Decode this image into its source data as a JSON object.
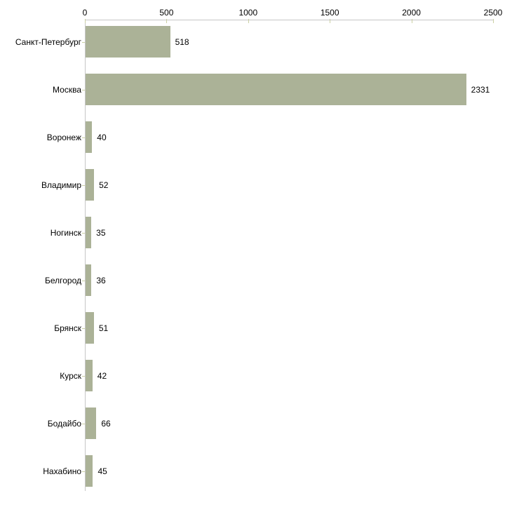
{
  "chart_data": {
    "type": "bar",
    "orientation": "horizontal",
    "title": "",
    "xlabel": "",
    "ylabel": "",
    "categories": [
      "Санкт-Петербург",
      "Москва",
      "Воронеж",
      "Владимир",
      "Ногинск",
      "Белгород",
      "Брянск",
      "Курск",
      "Бодайбо",
      "Нахабино"
    ],
    "values": [
      518,
      2331,
      40,
      52,
      35,
      36,
      51,
      42,
      66,
      45
    ],
    "value_labels": [
      "518",
      "2331",
      "40",
      "52",
      "35",
      "36",
      "51",
      "42",
      "66",
      "45"
    ],
    "xlim": [
      0,
      2500
    ],
    "x_ticks": [
      0,
      500,
      1000,
      1500,
      2000,
      2500
    ],
    "x_tick_labels": [
      "0",
      "500",
      "1000",
      "1500",
      "2000",
      "2500"
    ],
    "axis_position": "top",
    "grid": false,
    "legend": false,
    "colors": {
      "bar_fill": "#abb297",
      "axis_line": "#c6c6c6",
      "tick_mark": "#cbd0a4",
      "text": "#000000",
      "background": "#ffffff"
    }
  }
}
